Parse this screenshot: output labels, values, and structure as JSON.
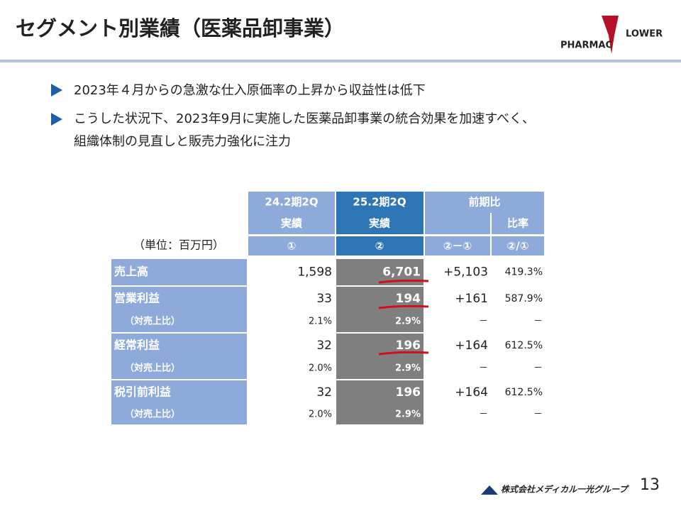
{
  "header": {
    "title": "セグメント別業績（医薬品卸事業）",
    "logo": [
      "PHARMAC",
      "LOWER"
    ]
  },
  "bullets": [
    "2023年４月からの急激な仕入原価率の上昇から収益性は低下",
    "こうした状況下、2023年9月に実施した医薬品卸事業の統合効果を加速すべく、",
    "組織体制の見直しと販売力強化に注力"
  ],
  "table": {
    "header": [
      [
        "24.2期2Q",
        "25.2期2Q",
        "前期比"
      ],
      [
        "実績",
        "実績",
        "比率"
      ],
      [
        "（単位：百万円）",
        "①",
        "②",
        "②－①",
        "②/①"
      ]
    ],
    "rows": [
      [
        "売上高",
        "1,598",
        "6,701",
        "+5,103",
        "419.3%"
      ],
      [
        "営業利益",
        "33",
        "194",
        "+161",
        "587.9%"
      ],
      [
        "（対売上比）",
        "2.1%",
        "2.9%",
        "－",
        "－"
      ],
      [
        "経常利益",
        "32",
        "196",
        "+164",
        "612.5%"
      ],
      [
        "（対売上比）",
        "2.0%",
        "2.9%",
        "－",
        "－"
      ],
      [
        "税引前利益",
        "32",
        "196",
        "+164",
        "612.5%"
      ],
      [
        "（対売上比）",
        "2.0%",
        "2.9%",
        "－",
        "－"
      ]
    ]
  },
  "footer": {
    "company": "株式会社メディカル一光グループ",
    "page": "13"
  }
}
